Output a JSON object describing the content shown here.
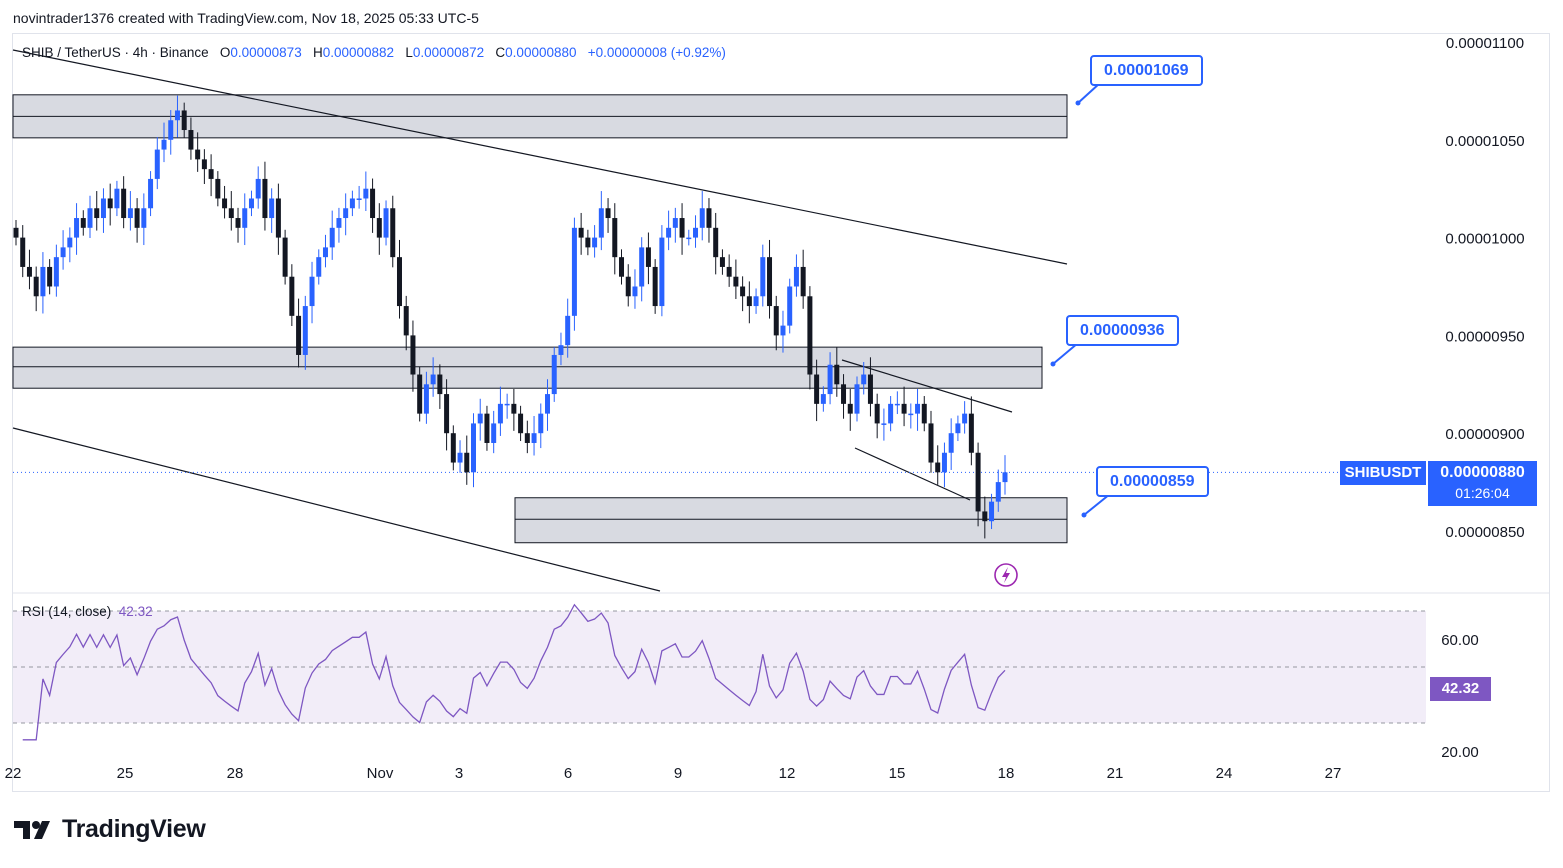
{
  "header": {
    "caption": "novintrader1376 created with TradingView.com, Nov 18, 2025 05:33 UTC-5"
  },
  "legend": {
    "symbol": "SHIB / TetherUS · 4h · Binance",
    "o_label": "O",
    "o_value": "0.00000873",
    "h_label": "H",
    "h_value": "0.00000882",
    "l_label": "L",
    "l_value": "0.00000872",
    "c_label": "C",
    "c_value": "0.00000880",
    "change": "+0.00000008 (+0.92%)"
  },
  "rsi_legend": {
    "label": "RSI (14, close)",
    "value": "42.32"
  },
  "callouts": [
    {
      "label": "0.00001069",
      "price": 1.069e-05
    },
    {
      "label": "0.00000936",
      "price": 9.36e-06
    },
    {
      "label": "0.00000859",
      "price": 8.59e-06
    }
  ],
  "price_tag": {
    "symbol": "SHIBUSDT",
    "price": "0.00000880",
    "countdown": "01:26:04"
  },
  "rsi_tag": {
    "value": "42.32"
  },
  "brand": {
    "name": "TradingView",
    "icon": "tradingview-logo-icon"
  },
  "colors": {
    "up": "#2962ff",
    "down": "#131722",
    "zone": "#d1d4dc",
    "rsi": "#7e57c2",
    "rsi_band": "#ede7f6"
  },
  "chart_data": {
    "type": "candlestick",
    "symbol": "SHIBUSDT",
    "timeframe": "4h",
    "price_axis": {
      "ticks": [
        "0.00001100",
        "0.00001050",
        "0.00001000",
        "0.00000950",
        "0.00000900",
        "0.00000850"
      ],
      "range": [
        8.2e-06,
        1.1e-05
      ]
    },
    "x_axis": {
      "labels": [
        "22",
        "25",
        "28",
        "Nov",
        "3",
        "6",
        "9",
        "12",
        "15",
        "18",
        "21",
        "24",
        "27"
      ]
    },
    "closes": [
      1e-05,
      9.85e-06,
      9.8e-06,
      9.7e-06,
      9.85e-06,
      9.75e-06,
      9.9e-06,
      9.95e-06,
      1e-05,
      1.01e-05,
      1.005e-05,
      1.015e-05,
      1.01e-05,
      1.02e-05,
      1.015e-05,
      1.025e-05,
      1.01e-05,
      1.015e-05,
      1.005e-05,
      1.015e-05,
      1.03e-05,
      1.045e-05,
      1.05e-05,
      1.06e-05,
      1.065e-05,
      1.055e-05,
      1.045e-05,
      1.04e-05,
      1.035e-05,
      1.03e-05,
      1.02e-05,
      1.015e-05,
      1.01e-05,
      1.005e-05,
      1.015e-05,
      1.02e-05,
      1.03e-05,
      1.01e-05,
      1.02e-05,
      1e-05,
      9.8e-06,
      9.6e-06,
      9.4e-06,
      9.65e-06,
      9.8e-06,
      9.9e-06,
      9.95e-06,
      1.005e-05,
      1.01e-05,
      1.015e-05,
      1.02e-05,
      1.02e-05,
      1.025e-05,
      1.01e-05,
      1e-05,
      1.015e-05,
      9.9e-06,
      9.65e-06,
      9.5e-06,
      9.3e-06,
      9.1e-06,
      9.25e-06,
      9.3e-06,
      9.2e-06,
      9e-06,
      8.85e-06,
      8.9e-06,
      8.8e-06,
      9.05e-06,
      9.1e-06,
      8.95e-06,
      9.05e-06,
      9.15e-06,
      9.15e-06,
      9.1e-06,
      9e-06,
      8.95e-06,
      9e-06,
      9.1e-06,
      9.2e-06,
      9.4e-06,
      9.45e-06,
      9.6e-06,
      1.005e-05,
      1e-05,
      9.95e-06,
      1e-05,
      1.015e-05,
      1.01e-05,
      9.9e-06,
      9.8e-06,
      9.7e-06,
      9.75e-06,
      9.95e-06,
      9.85e-06,
      9.65e-06,
      1e-05,
      1.005e-05,
      1.01e-05,
      1e-05,
      1e-05,
      1.005e-05,
      1.015e-05,
      1.005e-05,
      9.9e-06,
      9.85e-06,
      9.8e-06,
      9.75e-06,
      9.7e-06,
      9.65e-06,
      9.7e-06,
      9.9e-06,
      9.65e-06,
      9.5e-06,
      9.55e-06,
      9.75e-06,
      9.85e-06,
      9.7e-06,
      9.3e-06,
      9.15e-06,
      9.2e-06,
      9.35e-06,
      9.25e-06,
      9.15e-06,
      9.1e-06,
      9.25e-06,
      9.3e-06,
      9.15e-06,
      9.05e-06,
      9.05e-06,
      9.15e-06,
      9.15e-06,
      9.1e-06,
      9.1e-06,
      9.15e-06,
      9.05e-06,
      8.85e-06,
      8.8e-06,
      8.9e-06,
      9e-06,
      9.05e-06,
      9.1e-06,
      8.9e-06,
      8.6e-06,
      8.55e-06,
      8.65e-06,
      8.75e-06,
      8.8e-06
    ],
    "zones": [
      {
        "top": 1.073e-05,
        "bottom": 1.051e-05,
        "mid": 1.062e-05
      },
      {
        "top": 9.44e-06,
        "bottom": 9.23e-06,
        "mid": 9.34e-06
      },
      {
        "top": 8.67e-06,
        "bottom": 8.44e-06,
        "mid": 8.56e-06
      }
    ],
    "rsi": {
      "label": "RSI (14, close)",
      "current": 42.32,
      "band": [
        30,
        70
      ],
      "axis_ticks": [
        "60.00",
        "20.00"
      ]
    }
  }
}
